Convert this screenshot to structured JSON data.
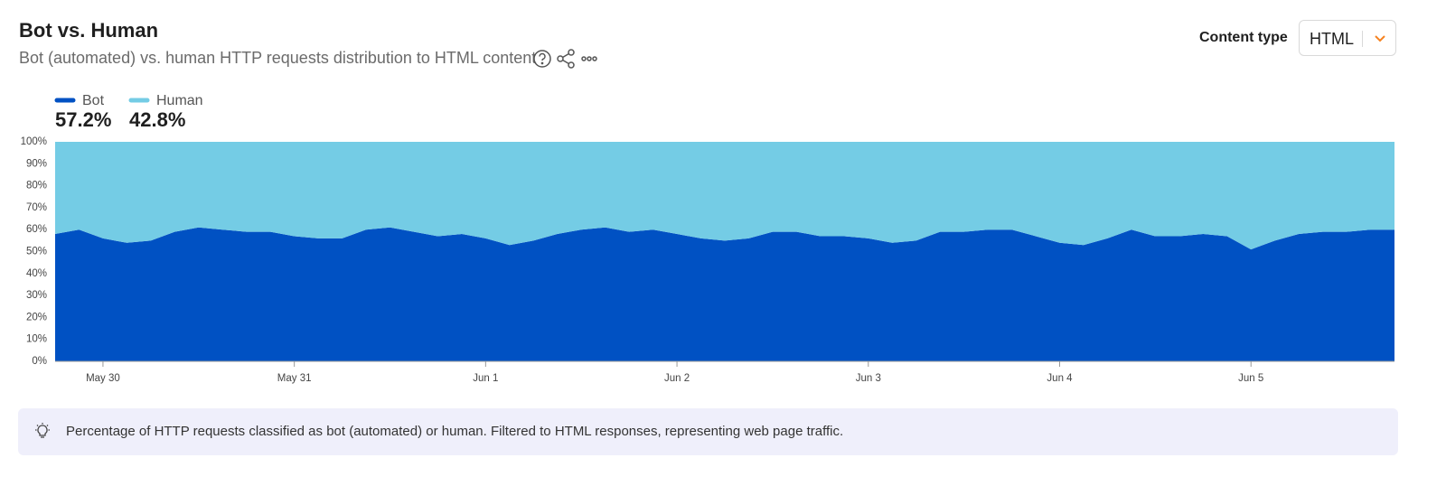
{
  "header": {
    "title": "Bot vs. Human",
    "subtitle": "Bot (automated) vs. human HTTP requests distribution to HTML content"
  },
  "controls": {
    "label": "Content type",
    "selected": "HTML"
  },
  "note": "Percentage of HTTP requests classified as bot (automated) or human. Filtered to HTML responses, representing web page traffic.",
  "chart_data": {
    "type": "stacked_area",
    "categories": [
      null,
      null,
      "May 30",
      null,
      null,
      null,
      null,
      null,
      null,
      null,
      "May 31",
      null,
      null,
      null,
      null,
      null,
      null,
      null,
      "Jun 1",
      null,
      null,
      null,
      null,
      null,
      null,
      null,
      "Jun 2",
      null,
      null,
      null,
      null,
      null,
      null,
      null,
      "Jun 3",
      null,
      null,
      null,
      null,
      null,
      null,
      null,
      "Jun 4",
      null,
      null,
      null,
      null,
      null,
      null,
      null,
      "Jun 5",
      null,
      null,
      null,
      null,
      null,
      null
    ],
    "series": [
      {
        "name": "Bot",
        "color": "#0051c3",
        "share_label": "57.2%",
        "values": [
          58,
          60,
          56,
          54,
          55,
          59,
          61,
          60,
          59,
          59,
          57,
          56,
          56,
          60,
          61,
          59,
          57,
          58,
          56,
          53,
          55,
          58,
          60,
          61,
          59,
          60,
          58,
          56,
          55,
          56,
          59,
          59,
          57,
          57,
          56,
          54,
          55,
          59,
          59,
          60,
          60,
          57,
          54,
          53,
          56,
          60,
          57,
          57,
          58,
          57,
          51,
          55,
          58,
          59,
          59,
          60,
          60
        ]
      },
      {
        "name": "Human",
        "color": "#74cce5",
        "share_label": "42.8%",
        "values": [
          42,
          40,
          44,
          46,
          45,
          41,
          39,
          40,
          41,
          41,
          43,
          44,
          44,
          40,
          39,
          41,
          43,
          42,
          44,
          47,
          45,
          42,
          40,
          39,
          41,
          40,
          42,
          44,
          45,
          44,
          41,
          41,
          43,
          43,
          44,
          46,
          45,
          41,
          41,
          40,
          40,
          43,
          46,
          47,
          44,
          40,
          43,
          43,
          42,
          43,
          49,
          45,
          42,
          41,
          41,
          40,
          40
        ]
      }
    ],
    "ylim": [
      0,
      100
    ],
    "yticks": [
      {
        "value": 0,
        "label": "0%"
      },
      {
        "value": 10,
        "label": "10%"
      },
      {
        "value": 20,
        "label": "20%"
      },
      {
        "value": 30,
        "label": "30%"
      },
      {
        "value": 40,
        "label": "40%"
      },
      {
        "value": 50,
        "label": "50%"
      },
      {
        "value": 60,
        "label": "60%"
      },
      {
        "value": 70,
        "label": "70%"
      },
      {
        "value": 80,
        "label": "80%"
      },
      {
        "value": 90,
        "label": "90%"
      },
      {
        "value": 100,
        "label": "100%"
      }
    ],
    "grid": false
  }
}
